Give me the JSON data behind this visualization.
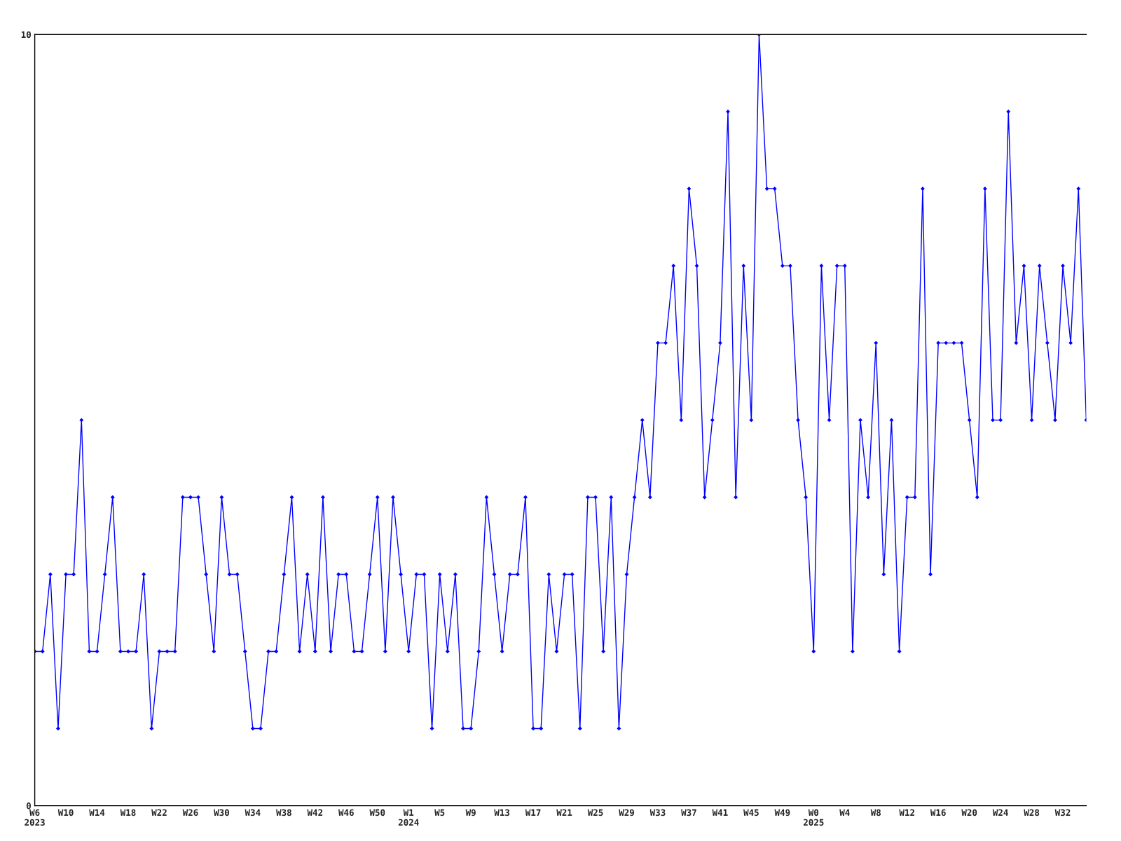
{
  "chart_data": {
    "type": "line",
    "categories": [
      "W6\n2023",
      null,
      null,
      null,
      "W10",
      null,
      null,
      null,
      "W14",
      null,
      null,
      null,
      "W18",
      null,
      null,
      null,
      "W22",
      null,
      null,
      null,
      "W26",
      null,
      null,
      null,
      "W30",
      null,
      null,
      null,
      "W34",
      null,
      null,
      null,
      "W38",
      null,
      null,
      null,
      "W42",
      null,
      null,
      null,
      "W46",
      null,
      null,
      null,
      "W50",
      null,
      null,
      null,
      "W1\n2024",
      null,
      null,
      null,
      "W5",
      null,
      null,
      null,
      "W9",
      null,
      null,
      null,
      "W13",
      null,
      null,
      null,
      "W17",
      null,
      null,
      null,
      "W21",
      null,
      null,
      null,
      "W25",
      null,
      null,
      null,
      "W29",
      null,
      null,
      null,
      "W33",
      null,
      null,
      null,
      "W37",
      null,
      null,
      null,
      "W41",
      null,
      null,
      null,
      "W45",
      null,
      null,
      null,
      "W49",
      null,
      null,
      null,
      "W0\n2025",
      null,
      null,
      null,
      "W4",
      null,
      null,
      null,
      "W8",
      null,
      null,
      null,
      "W12",
      null,
      null,
      null,
      "W16",
      null,
      null,
      null,
      "W20",
      null,
      null,
      null,
      "W24",
      null,
      null,
      null,
      "W28",
      null,
      null,
      null,
      "W32",
      null,
      null,
      null
    ],
    "series": [
      {
        "color": "#0000ff",
        "values": [
          2,
          2,
          3,
          1,
          3,
          3,
          5,
          2,
          2,
          3,
          4,
          2,
          2,
          2,
          3,
          1,
          2,
          2,
          2,
          4,
          4,
          4,
          3,
          2,
          4,
          3,
          3,
          2,
          1,
          1,
          2,
          2,
          3,
          4,
          2,
          3,
          2,
          4,
          2,
          3,
          3,
          2,
          2,
          3,
          4,
          2,
          4,
          3,
          2,
          3,
          3,
          1,
          3,
          2,
          3,
          1,
          1,
          2,
          4,
          3,
          2,
          3,
          3,
          4,
          1,
          1,
          3,
          2,
          3,
          3,
          1,
          4,
          4,
          2,
          4,
          1,
          3,
          4,
          5,
          4,
          6,
          6,
          7,
          5,
          8,
          7,
          4,
          5,
          6,
          9,
          4,
          7,
          5,
          10,
          8,
          8,
          7,
          7,
          5,
          4,
          2,
          7,
          5,
          7,
          7,
          2,
          5,
          4,
          6,
          3,
          5,
          2,
          4,
          4,
          8,
          3,
          6,
          6,
          6,
          6,
          5,
          4,
          8,
          5,
          5,
          9,
          6,
          7,
          5,
          7,
          6,
          5,
          7,
          6,
          8,
          5
        ]
      }
    ],
    "ylim": [
      0,
      10
    ],
    "yticks": [
      0,
      10
    ],
    "marker": "diamond",
    "line_style": "solid",
    "grid": false,
    "legend": false
  }
}
